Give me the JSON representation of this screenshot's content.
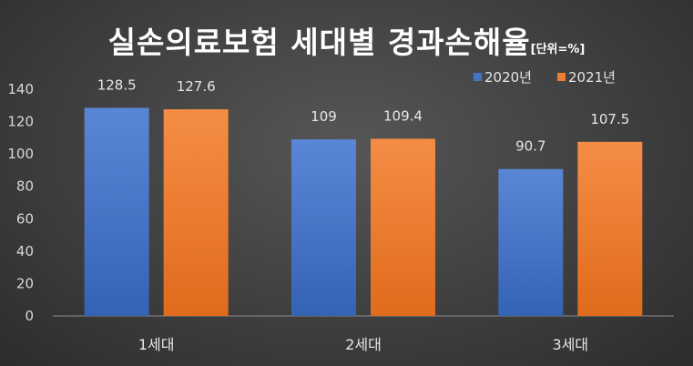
{
  "chart_data": {
    "type": "bar",
    "title": "실손의료보험 세대별 경과손해율",
    "subtitle": "[단위=%]",
    "categories": [
      "1세대",
      "2세대",
      "3세대"
    ],
    "series": [
      {
        "name": "2020년",
        "color": "#4472c4",
        "values": [
          128.5,
          109,
          90.7
        ]
      },
      {
        "name": "2021년",
        "color": "#ed7d31",
        "values": [
          127.6,
          109.4,
          107.5
        ]
      }
    ],
    "ylim": [
      0,
      140
    ],
    "yticks": [
      0,
      20,
      40,
      60,
      80,
      100,
      120,
      140
    ],
    "grid": false,
    "legend_position": "top-right",
    "data_labels": true
  }
}
